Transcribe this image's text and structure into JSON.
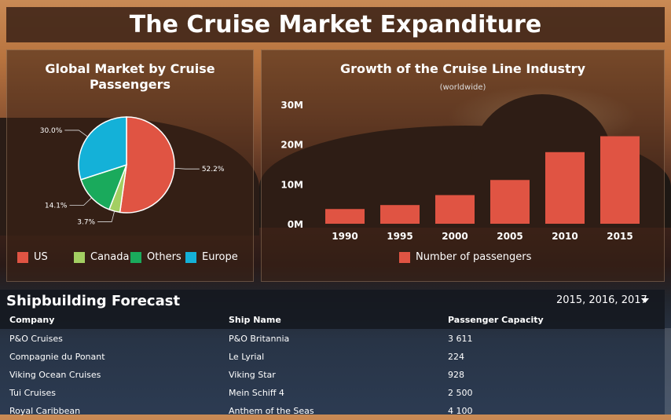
{
  "page": {
    "title": "The Cruise Market Expanditure"
  },
  "pie_panel": {
    "title_line1": "Global Market by Cruise",
    "title_line2": "Passengers"
  },
  "bar_panel": {
    "title": "Growth of the Cruise Line Industry",
    "subtitle": "(worldwide)"
  },
  "chart_data": [
    {
      "type": "pie",
      "title": "Global Market by Cruise Passengers",
      "labels": [
        "US",
        "Canada",
        "Others",
        "Europe"
      ],
      "values": [
        52.2,
        3.7,
        14.1,
        30.0
      ],
      "value_labels": [
        "52.2%",
        "3.7%",
        "14.1%",
        "30.0%"
      ],
      "colors": [
        "#e05443",
        "#a3cf62",
        "#1aaa5c",
        "#14b1d8"
      ],
      "legend": "bottom"
    },
    {
      "type": "bar",
      "title": "Growth of the Cruise Line Industry",
      "subtitle": "(worldwide)",
      "categories": [
        "1990",
        "1995",
        "2000",
        "2005",
        "2010",
        "2015"
      ],
      "series": [
        {
          "name": "Number of passengers",
          "values": [
            3700000,
            4700000,
            7200000,
            11000000,
            18000000,
            22000000
          ],
          "color": "#e05443"
        }
      ],
      "yticks": [
        "0M",
        "10M",
        "20M",
        "30M"
      ],
      "ylim": [
        0,
        30000000
      ],
      "grid": false,
      "legend": "bottom"
    }
  ],
  "forecast": {
    "title": "Shipbuilding Forecast",
    "filter_value": "2015, 2016, 2017",
    "columns": [
      "Company",
      "Ship Name",
      "Passenger Capacity"
    ],
    "rows": [
      [
        "P&O Cruises",
        "P&O Britannia",
        "3 611"
      ],
      [
        "Compagnie du Ponant",
        "Le Lyrial",
        "224"
      ],
      [
        "Viking Ocean Cruises",
        "Viking Star",
        "928"
      ],
      [
        "Tui Cruises",
        "Mein Schiff 4",
        "2 500"
      ],
      [
        "Royal Caribbean",
        "Anthem of the Seas",
        "4 100"
      ]
    ]
  }
}
